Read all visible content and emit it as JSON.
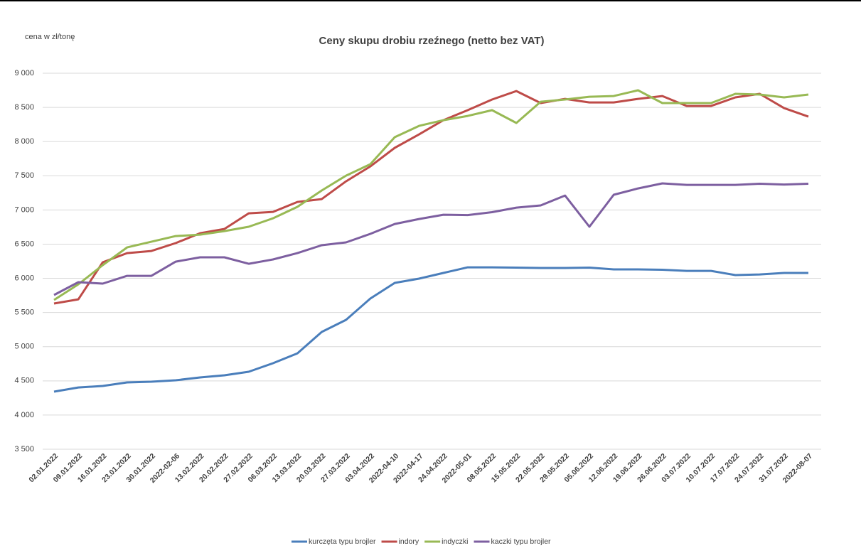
{
  "chart_data": {
    "type": "line",
    "title": "Ceny skupu drobiu rzeźnego (netto bez VAT)",
    "y_label": "cena w zł/tonę",
    "categories": [
      "02.01.2022",
      "09.01.2022",
      "16.01.2022",
      "23.01.2022",
      "30.01.2022",
      "2022-02-06",
      "13.02.2022",
      "20.02.2022",
      "27.02.2022",
      "06.03.2022",
      "13.03.2022",
      "20.03.2022",
      "27.03.2022",
      "03.04.2022",
      "2022-04-10",
      "2022-04-17",
      "24.04.2022",
      "2022-05-01",
      "08.05.2022",
      "15.05.2022",
      "22.05.2022",
      "29.05.2022",
      "05.06.2022",
      "12.06.2022",
      "19.06.2022",
      "26.06.2022",
      "03.07.2022",
      "10.07.2022",
      "17.07.2022",
      "24.07.2022",
      "31.07.2022",
      "2022-08-07"
    ],
    "series": [
      {
        "name": "kurczęta typu brojler",
        "color": "#4a7ebb",
        "values": [
          4342,
          4404,
          4425,
          4477,
          4488,
          4508,
          4550,
          4581,
          4633,
          4758,
          4903,
          5215,
          5392,
          5704,
          5933,
          5995,
          6078,
          6161,
          6161,
          6156,
          6151,
          6151,
          6156,
          6130,
          6130,
          6125,
          6109,
          6109,
          6047,
          6057,
          6078,
          6078
        ]
      },
      {
        "name": "indory",
        "color": "#be4b48",
        "values": [
          5631,
          5693,
          6234,
          6369,
          6400,
          6515,
          6660,
          6722,
          6951,
          6972,
          7117,
          7159,
          7419,
          7637,
          7908,
          8105,
          8313,
          8459,
          8615,
          8739,
          8563,
          8625,
          8573,
          8573,
          8625,
          8666,
          8521,
          8521,
          8646,
          8698,
          8490,
          8365
        ]
      },
      {
        "name": "indyczki",
        "color": "#98b954",
        "values": [
          5683,
          5912,
          6193,
          6452,
          6535,
          6618,
          6639,
          6691,
          6754,
          6878,
          7045,
          7284,
          7502,
          7669,
          8064,
          8230,
          8313,
          8375,
          8459,
          8272,
          8583,
          8615,
          8656,
          8666,
          8750,
          8563,
          8563,
          8563,
          8698,
          8688,
          8646,
          8688
        ]
      },
      {
        "name": "kaczki typu brojler",
        "color": "#7d5fa0",
        "values": [
          5756,
          5943,
          5922,
          6036,
          6036,
          6244,
          6307,
          6307,
          6213,
          6276,
          6369,
          6484,
          6525,
          6650,
          6795,
          6868,
          6930,
          6925,
          6967,
          7034,
          7066,
          7211,
          6754,
          7222,
          7315,
          7388,
          7367,
          7367,
          7367,
          7383,
          7372,
          7383
        ]
      }
    ],
    "ylim": [
      3500,
      9000
    ],
    "yticks": [
      {
        "value": 3500,
        "label": "3 500"
      },
      {
        "value": 4000,
        "label": "4 000"
      },
      {
        "value": 4500,
        "label": "4 500"
      },
      {
        "value": 5000,
        "label": "5 000"
      },
      {
        "value": 5500,
        "label": "5 500"
      },
      {
        "value": 6000,
        "label": "6 000"
      },
      {
        "value": 6500,
        "label": "6 500"
      },
      {
        "value": 7000,
        "label": "7 000"
      },
      {
        "value": 7500,
        "label": "7 500"
      },
      {
        "value": 8000,
        "label": "8 000"
      },
      {
        "value": 8500,
        "label": "8 500"
      },
      {
        "value": 9000,
        "label": "9 000"
      }
    ],
    "grid": true,
    "legend": "bottom"
  }
}
